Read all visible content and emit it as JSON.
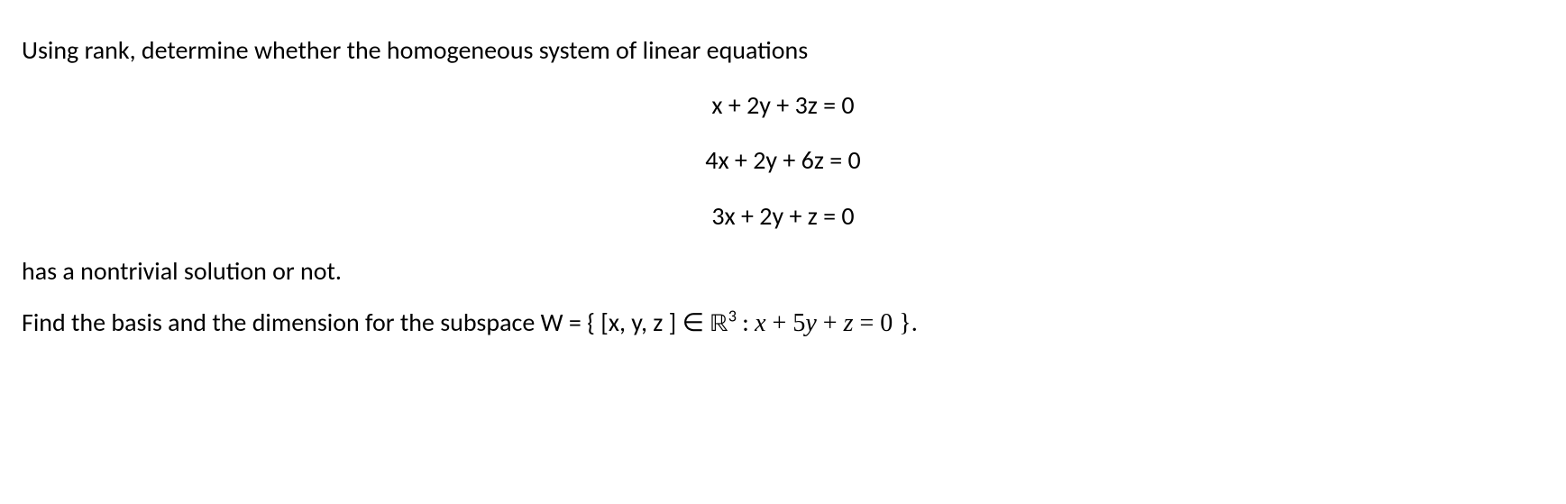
{
  "q1": {
    "intro": "Using rank, determine whether the homogeneous system of linear equations",
    "eq1": "x + 2y + 3z = 0",
    "eq2": "4x + 2y + 6z = 0",
    "eq3": "3x + 2y + z = 0",
    "outro": "has a nontrivial solution or not."
  },
  "q2": {
    "prefix": "Find the basis and the dimension for the subspace W = ",
    "set_open": "{ [x, y, z ]  ∈ ",
    "space_sym": "ℝ",
    "space_exp": "3",
    "colon": " : ",
    "cond_x": "x",
    "cond_plus1": " + 5",
    "cond_y": "y",
    "cond_plus2": " + ",
    "cond_z": "z",
    "cond_eq": " = 0 }",
    "period": "."
  },
  "style": {
    "font_size_pt": 21,
    "text_color": "#000000",
    "background_color": "#ffffff",
    "equation_align": "center"
  }
}
